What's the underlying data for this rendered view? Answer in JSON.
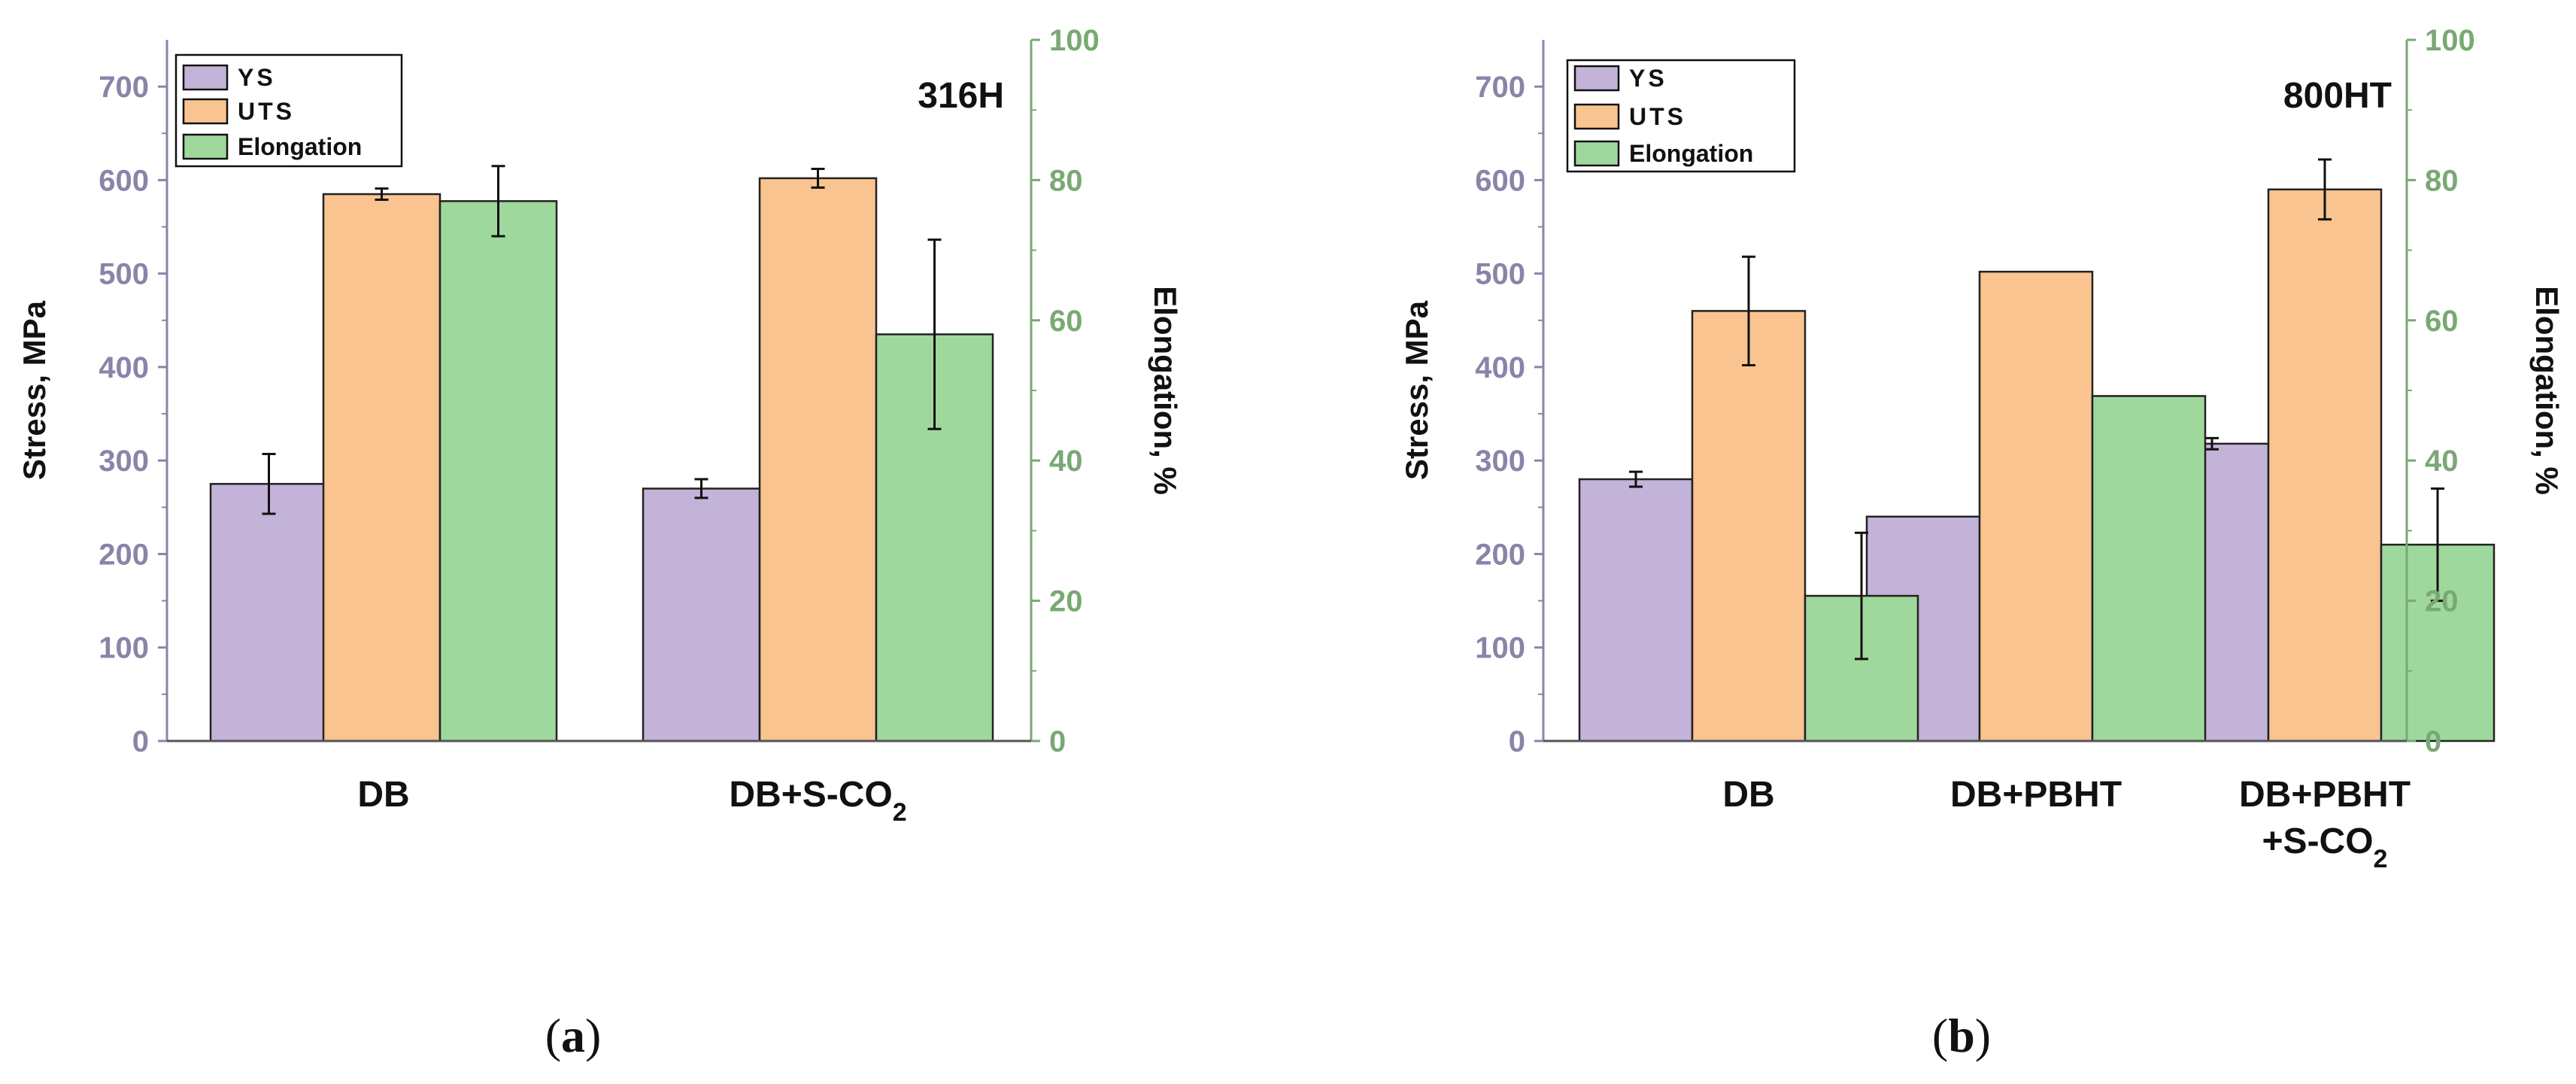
{
  "colors": {
    "ys": "#c3b3d9",
    "uts": "#f9c490",
    "elongation": "#9fd89c",
    "left_axis": "#8a84a8",
    "right_axis": "#7aa874",
    "bar_stroke": "#222222"
  },
  "chart_data": [
    {
      "type": "bar",
      "title": "316H",
      "caption": {
        "open": "(",
        "letter": "a",
        "close": ")"
      },
      "categories": [
        [
          "DB"
        ],
        [
          "DB+S-CO",
          "2",
          ""
        ]
      ],
      "ylabel": "Stress, MPa",
      "y2label": "Elongation, %",
      "ylim": [
        0,
        750
      ],
      "y2lim": [
        0,
        100
      ],
      "yticks": [
        0,
        100,
        200,
        300,
        400,
        500,
        600,
        700
      ],
      "y2ticks": [
        0,
        20,
        40,
        60,
        80,
        100
      ],
      "legend": {
        "position": "top-left",
        "entries": [
          "YS",
          "UTS",
          "Elongation"
        ]
      },
      "series": [
        {
          "name": "YS",
          "axis": "left",
          "values": [
            275,
            270
          ],
          "errors": [
            32,
            10
          ]
        },
        {
          "name": "UTS",
          "axis": "left",
          "values": [
            585,
            602
          ],
          "errors": [
            6,
            10
          ]
        },
        {
          "name": "Elongation",
          "axis": "right",
          "values": [
            77,
            58
          ],
          "errors": [
            5,
            13.5
          ]
        }
      ]
    },
    {
      "type": "bar",
      "title": "800HT",
      "caption": {
        "open": "(",
        "letter": "b",
        "close": ")"
      },
      "categories": [
        [
          "DB"
        ],
        [
          "DB+PBHT"
        ],
        [
          "DB+PBHT",
          "+S-CO",
          "2",
          ""
        ]
      ],
      "ylabel": "Stress, MPa",
      "y2label": "Elongation, %",
      "ylim": [
        0,
        750
      ],
      "y2lim": [
        0,
        100
      ],
      "yticks": [
        0,
        100,
        200,
        300,
        400,
        500,
        600,
        700
      ],
      "y2ticks": [
        0,
        20,
        40,
        60,
        80,
        100
      ],
      "legend": {
        "position": "top-left",
        "entries": [
          "YS",
          "UTS",
          "Elongation"
        ]
      },
      "series": [
        {
          "name": "YS",
          "axis": "left",
          "values": [
            280,
            240,
            318
          ],
          "errors": [
            8,
            0,
            6
          ]
        },
        {
          "name": "UTS",
          "axis": "left",
          "values": [
            460,
            502,
            590
          ],
          "errors": [
            58,
            0,
            32
          ]
        },
        {
          "name": "Elongation",
          "axis": "right",
          "values": [
            20.7,
            49.2,
            28
          ],
          "errors": [
            9,
            0,
            8
          ]
        }
      ]
    }
  ]
}
